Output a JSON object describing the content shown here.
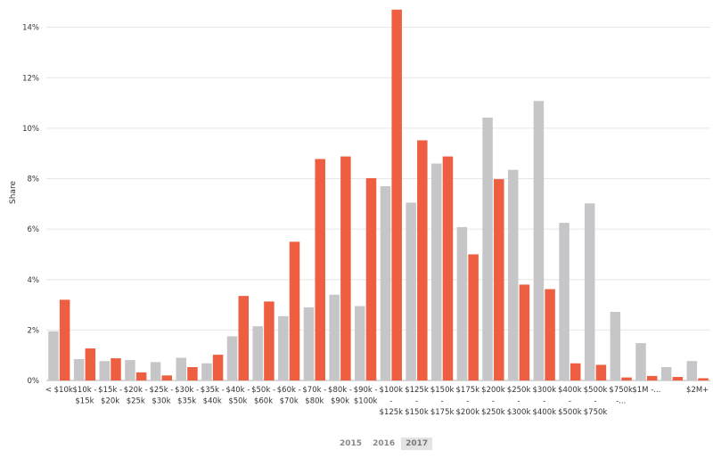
{
  "chart_data": {
    "type": "bar",
    "ylabel": "Share",
    "ylim": [
      0,
      14.8
    ],
    "yticks": [
      "0%",
      "2%",
      "4%",
      "6%",
      "8%",
      "10%",
      "12%",
      "14%"
    ],
    "grid": true,
    "categories": [
      "< $10k",
      "$10k - $15k",
      "$15k - $20k",
      "$20k - $25k",
      "$25k - $30k",
      "$30k - $35k",
      "$35k - $40k",
      "$40k - $50k",
      "$50k - $60k",
      "$60k - $70k",
      "$70k - $80k",
      "$80k - $90k",
      "$90k - $100k",
      "$100k - $125k",
      "$125k - $150k",
      "$150k - $175k",
      "$175k - $200k",
      "$200k - $250k",
      "$250k - $300k",
      "$300k - $400k",
      "$400k - $500k",
      "$500k - $750k",
      "$750k -...",
      "$1M -...",
      "",
      "$2M+"
    ],
    "category_lines": [
      [
        "< $10k"
      ],
      [
        "$10k -",
        "$15k"
      ],
      [
        "$15k -",
        "$20k"
      ],
      [
        "$20k -",
        "$25k"
      ],
      [
        "$25k -",
        "$30k"
      ],
      [
        "$30k -",
        "$35k"
      ],
      [
        "$35k -",
        "$40k"
      ],
      [
        "$40k -",
        "$50k"
      ],
      [
        "$50k -",
        "$60k"
      ],
      [
        "$60k -",
        "$70k"
      ],
      [
        "$70k -",
        "$80k"
      ],
      [
        "$80k -",
        "$90k"
      ],
      [
        "$90k -",
        "$100k"
      ],
      [
        "$100k",
        "-",
        "$125k"
      ],
      [
        "$125k",
        "-",
        "$150k"
      ],
      [
        "$150k",
        "-",
        "$175k"
      ],
      [
        "$175k",
        "-",
        "$200k"
      ],
      [
        "$200k",
        "-",
        "$250k"
      ],
      [
        "$250k",
        "-",
        "$300k"
      ],
      [
        "$300k",
        "-",
        "$400k"
      ],
      [
        "$400k",
        "-",
        "$500k"
      ],
      [
        "$500k",
        "-",
        "$750k"
      ],
      [
        "$750k",
        "-..."
      ],
      [
        "$1M -..."
      ],
      [
        ""
      ],
      [
        "$2M+"
      ]
    ],
    "series": [
      {
        "color": "#c6c6c9",
        "values": [
          1.95,
          0.85,
          0.77,
          0.81,
          0.73,
          0.9,
          0.68,
          1.75,
          2.15,
          2.55,
          2.9,
          3.4,
          2.95,
          7.7,
          7.05,
          8.6,
          6.08,
          10.42,
          8.35,
          11.08,
          6.25,
          7.02,
          2.72,
          1.48,
          0.53,
          0.77
        ]
      },
      {
        "color": "#ee5f41",
        "values": [
          3.2,
          1.27,
          0.88,
          0.32,
          0.2,
          0.53,
          1.02,
          3.35,
          3.13,
          5.5,
          8.78,
          8.88,
          8.02,
          14.7,
          9.52,
          8.88,
          5.0,
          7.98,
          3.8,
          3.62,
          0.68,
          0.62,
          0.12,
          0.18,
          0.14,
          0.09
        ]
      }
    ]
  },
  "year_selector": {
    "options": [
      "2015",
      "2016",
      "2017"
    ],
    "selected": "2017"
  }
}
